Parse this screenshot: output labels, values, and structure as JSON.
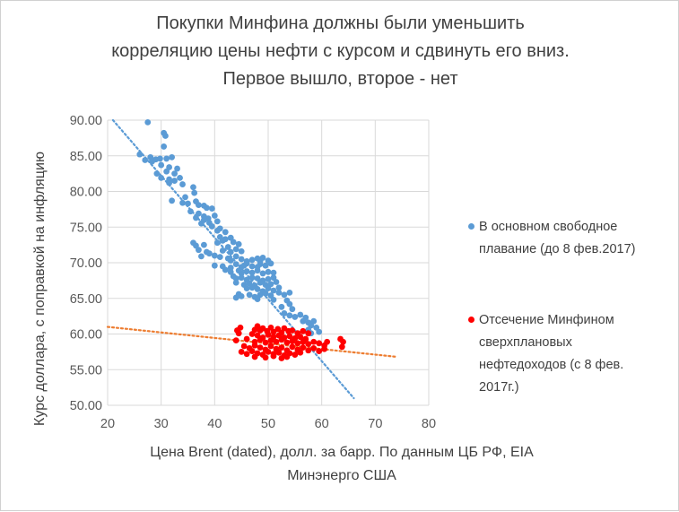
{
  "title_lines": [
    "Покупки Минфина должны были уменьшить",
    "корреляцию цены нефти с курсом и сдвинуть его вниз.",
    "Первое вышло, второе - нет"
  ],
  "chart_data": {
    "type": "scatter",
    "xlabel_lines": [
      "Цена Brent (dated), долл. за барр. По данным ЦБ РФ, EIA",
      "Минэнерго США"
    ],
    "ylabel": "Курс доллара, с поправкой на инфляцию",
    "xlim": [
      20,
      80
    ],
    "ylim": [
      50,
      90
    ],
    "x_ticks": [
      "20",
      "30",
      "40",
      "50",
      "60",
      "70",
      "80"
    ],
    "y_ticks": [
      "50.00",
      "55.00",
      "60.00",
      "65.00",
      "70.00",
      "75.00",
      "80.00",
      "85.00",
      "90.00"
    ],
    "grid": true,
    "legend_position": "right",
    "series": [
      {
        "name_lines": [
          "В основном свободное",
          "плавание (до 8 фев.2017)"
        ],
        "color": "#5b9bd5",
        "trend_color": "#5b9bd5",
        "trend": [
          [
            21,
            90
          ],
          [
            66,
            51
          ]
        ],
        "points": [
          [
            27.5,
            89.7
          ],
          [
            30.5,
            88.2
          ],
          [
            30.8,
            87.8
          ],
          [
            30.5,
            86.3
          ],
          [
            26,
            85.2
          ],
          [
            27,
            84.4
          ],
          [
            28,
            84.8
          ],
          [
            28.3,
            84.2
          ],
          [
            29,
            84.5
          ],
          [
            29.8,
            84.6
          ],
          [
            31,
            84.6
          ],
          [
            32,
            84.8
          ],
          [
            30,
            83.7
          ],
          [
            31.5,
            83.4
          ],
          [
            33,
            83.2
          ],
          [
            29.2,
            82.5
          ],
          [
            31,
            82.8
          ],
          [
            32.5,
            82.5
          ],
          [
            30,
            81.9
          ],
          [
            31.5,
            81.7
          ],
          [
            32.5,
            81.5
          ],
          [
            33.5,
            81.9
          ],
          [
            31.5,
            81.2
          ],
          [
            34,
            81
          ],
          [
            36,
            80.6
          ],
          [
            36.2,
            79.8
          ],
          [
            34.5,
            79.2
          ],
          [
            32,
            78.7
          ],
          [
            34,
            78.4
          ],
          [
            35,
            78.3
          ],
          [
            36.5,
            78.6
          ],
          [
            37,
            78.1
          ],
          [
            38,
            78
          ],
          [
            38.5,
            77.7
          ],
          [
            39.5,
            77.6
          ],
          [
            35.5,
            77.2
          ],
          [
            37,
            76.9
          ],
          [
            38,
            76.5
          ],
          [
            38.8,
            76.2
          ],
          [
            40,
            76.6
          ],
          [
            36.5,
            76.3
          ],
          [
            38,
            76
          ],
          [
            37.5,
            75.5
          ],
          [
            39,
            75.6
          ],
          [
            40.5,
            75.8
          ],
          [
            39.5,
            75.1
          ],
          [
            41,
            74.8
          ],
          [
            40.5,
            74.5
          ],
          [
            42,
            74.3
          ],
          [
            41,
            73.6
          ],
          [
            42,
            73.3
          ],
          [
            43,
            73.5
          ],
          [
            41.5,
            73.1
          ],
          [
            43.5,
            72.9
          ],
          [
            44.5,
            72.6
          ],
          [
            36,
            72.8
          ],
          [
            36.5,
            72.4
          ],
          [
            38,
            72.5
          ],
          [
            40.5,
            72.8
          ],
          [
            42.5,
            72.2
          ],
          [
            37,
            71.8
          ],
          [
            38.5,
            71.5
          ],
          [
            39,
            71.3
          ],
          [
            41.5,
            71.7
          ],
          [
            43,
            71.5
          ],
          [
            44,
            71.9
          ],
          [
            45,
            71.6
          ],
          [
            37.5,
            70.9
          ],
          [
            40,
            71
          ],
          [
            41,
            70.8
          ],
          [
            42.5,
            70.6
          ],
          [
            43,
            70.3
          ],
          [
            44,
            70.9
          ],
          [
            45,
            70.5
          ],
          [
            46,
            70.2
          ],
          [
            47,
            70.4
          ],
          [
            48,
            70.6
          ],
          [
            48.5,
            70.2
          ],
          [
            49,
            70.7
          ],
          [
            50,
            70.3
          ],
          [
            40,
            69.6
          ],
          [
            41.5,
            69.5
          ],
          [
            43,
            69.3
          ],
          [
            44,
            69.8
          ],
          [
            45,
            69.4
          ],
          [
            45.5,
            69.6
          ],
          [
            46,
            69.9
          ],
          [
            47,
            69.5
          ],
          [
            48,
            69.4
          ],
          [
            48.5,
            69.8
          ],
          [
            49.5,
            69.6
          ],
          [
            50.5,
            69.9
          ],
          [
            42,
            69
          ],
          [
            43,
            68.7
          ],
          [
            44.5,
            68.9
          ],
          [
            45,
            68.5
          ],
          [
            46,
            68.8
          ],
          [
            47,
            68.6
          ],
          [
            48,
            68.9
          ],
          [
            49,
            68.5
          ],
          [
            50,
            68.7
          ],
          [
            51,
            68.6
          ],
          [
            43.5,
            68.1
          ],
          [
            44,
            67.8
          ],
          [
            45,
            67.9
          ],
          [
            46,
            67.6
          ],
          [
            47,
            67.9
          ],
          [
            48,
            67.8
          ],
          [
            49,
            67.5
          ],
          [
            50,
            67.7
          ],
          [
            51,
            67.9
          ],
          [
            44,
            67.2
          ],
          [
            45.5,
            66.9
          ],
          [
            46.5,
            67.1
          ],
          [
            47.5,
            66.8
          ],
          [
            48.5,
            67.2
          ],
          [
            49.5,
            66.9
          ],
          [
            50.5,
            67
          ],
          [
            51.5,
            67.3
          ],
          [
            46,
            66.4
          ],
          [
            47,
            66.5
          ],
          [
            48,
            66.3
          ],
          [
            49,
            66
          ],
          [
            50,
            66.4
          ],
          [
            51,
            66.1
          ],
          [
            52,
            66.5
          ],
          [
            44.5,
            65.6
          ],
          [
            45,
            65.3
          ],
          [
            46.5,
            65.5
          ],
          [
            47.5,
            65.2
          ],
          [
            48.5,
            65.5
          ],
          [
            49.5,
            65.7
          ],
          [
            50.5,
            65.4
          ],
          [
            52,
            65.8
          ],
          [
            53,
            65.5
          ],
          [
            54,
            65.8
          ],
          [
            44,
            65.1
          ],
          [
            48,
            64.9
          ],
          [
            51,
            64.8
          ],
          [
            53.5,
            64.7
          ],
          [
            54,
            64.2
          ],
          [
            52.5,
            63.8
          ],
          [
            54.5,
            63.5
          ],
          [
            53,
            62.9
          ],
          [
            54,
            62.6
          ],
          [
            55,
            62.4
          ],
          [
            56,
            62.7
          ],
          [
            57,
            62.3
          ],
          [
            56.5,
            61.8
          ],
          [
            57.5,
            61.6
          ],
          [
            58,
            61.2
          ],
          [
            58.5,
            61.8
          ],
          [
            57.5,
            60.6
          ],
          [
            59,
            60.9
          ],
          [
            58,
            60.1
          ],
          [
            59.5,
            60.3
          ]
        ]
      },
      {
        "name_lines": [
          "Отсечение Минфином",
          "сверхплановых",
          "нефтедоходов (с 8 фев.",
          "2017г.)"
        ],
        "color": "#ff0000",
        "trend_color": "#ed7d31",
        "trend": [
          [
            20,
            61
          ],
          [
            74,
            56.8
          ]
        ],
        "points": [
          [
            44.2,
            60.5
          ],
          [
            44.8,
            60.9
          ],
          [
            44.5,
            60.1
          ],
          [
            47.5,
            60.6
          ],
          [
            48,
            61.1
          ],
          [
            48.5,
            60.5
          ],
          [
            49,
            60.8
          ],
          [
            49.8,
            60.4
          ],
          [
            50.5,
            60.9
          ],
          [
            51,
            60.3
          ],
          [
            51.8,
            60.7
          ],
          [
            52.5,
            60.2
          ],
          [
            53,
            60.8
          ],
          [
            53.8,
            60.4
          ],
          [
            54.5,
            60.5
          ],
          [
            55.5,
            60.1
          ],
          [
            56.5,
            60.4
          ],
          [
            57.5,
            60.1
          ],
          [
            47,
            60
          ],
          [
            48,
            59.8
          ],
          [
            49,
            59.5
          ],
          [
            50,
            59.9
          ],
          [
            51,
            59.6
          ],
          [
            52,
            59.8
          ],
          [
            53,
            59.5
          ],
          [
            54,
            59.7
          ],
          [
            55,
            59.4
          ],
          [
            56,
            59.6
          ],
          [
            57,
            59.3
          ],
          [
            44,
            59.1
          ],
          [
            46,
            59.3
          ],
          [
            47.5,
            58.9
          ],
          [
            48.5,
            59.2
          ],
          [
            49.5,
            58.8
          ],
          [
            50.5,
            59.1
          ],
          [
            51.5,
            58.9
          ],
          [
            52.5,
            59.2
          ],
          [
            53.5,
            58.8
          ],
          [
            54.5,
            59
          ],
          [
            55.5,
            58.7
          ],
          [
            56.5,
            58.9
          ],
          [
            57.5,
            58.6
          ],
          [
            58.5,
            58.9
          ],
          [
            59.5,
            58.7
          ],
          [
            60.5,
            58.4
          ],
          [
            61,
            58.9
          ],
          [
            63.5,
            59.3
          ],
          [
            64,
            58.9
          ],
          [
            63.8,
            58.2
          ],
          [
            45.5,
            58.3
          ],
          [
            46.5,
            58
          ],
          [
            47.5,
            58.4
          ],
          [
            48.5,
            58.1
          ],
          [
            49.5,
            57.8
          ],
          [
            50.5,
            58.3
          ],
          [
            51.5,
            57.9
          ],
          [
            52.5,
            58.1
          ],
          [
            53.5,
            57.7
          ],
          [
            54.5,
            58.2
          ],
          [
            55.5,
            57.8
          ],
          [
            56.5,
            58.1
          ],
          [
            57.5,
            57.7
          ],
          [
            58.5,
            58
          ],
          [
            59.5,
            57.6
          ],
          [
            60.5,
            57.9
          ],
          [
            45,
            57.5
          ],
          [
            46,
            57.2
          ],
          [
            47,
            57.6
          ],
          [
            48,
            57.3
          ],
          [
            49,
            57.1
          ],
          [
            50,
            57.5
          ],
          [
            51,
            57.2
          ],
          [
            52,
            57.4
          ],
          [
            53,
            57
          ],
          [
            54,
            57.3
          ],
          [
            55,
            57.1
          ],
          [
            56,
            57.4
          ],
          [
            47.5,
            56.8
          ],
          [
            49.5,
            56.7
          ],
          [
            51,
            56.9
          ],
          [
            52.5,
            56.6
          ],
          [
            53.5,
            56.8
          ]
        ]
      }
    ]
  }
}
